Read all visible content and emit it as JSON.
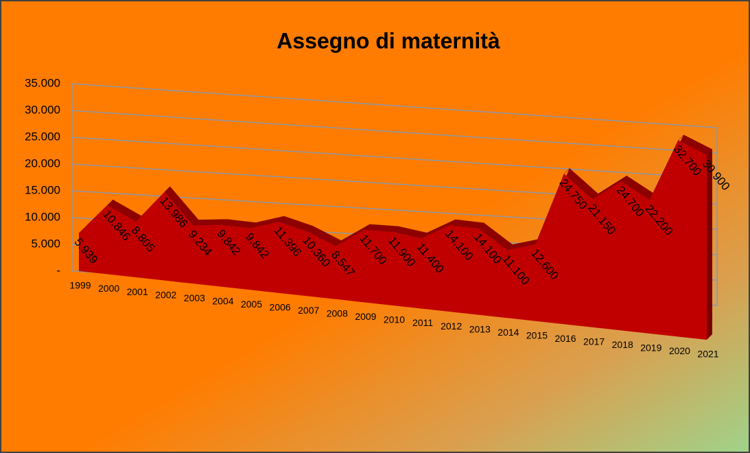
{
  "chart_data": {
    "type": "area3d",
    "title": "Assegno di maternità",
    "categories": [
      "1999",
      "2000",
      "2001",
      "2002",
      "2003",
      "2004",
      "2005",
      "2006",
      "2007",
      "2008",
      "2009",
      "2010",
      "2011",
      "2012",
      "2013",
      "2014",
      "2015",
      "2016",
      "2017",
      "2018",
      "2019",
      "2020",
      "2021"
    ],
    "values": [
      5939,
      10846,
      8805,
      13986,
      9234,
      9842,
      9842,
      11396,
      10360,
      8547,
      11700,
      11900,
      11400,
      14100,
      14100,
      11100,
      12600,
      24750,
      21150,
      24700,
      22200,
      32700,
      30900
    ],
    "value_labels": [
      "5.939",
      "10.846",
      "8.805",
      "13.986",
      "9.234",
      "9.842",
      "9.842",
      "11.396",
      "10.360",
      "8.547",
      "11.700",
      "11.900",
      "11.400",
      "14.100",
      "14.100",
      "11.100",
      "12.600",
      "24.750",
      "21.150",
      "24.700",
      "22.200",
      "32.700",
      "30.900"
    ],
    "color": "#c00000",
    "ylim": [
      0,
      35000
    ],
    "yticks": [
      {
        "value": 0,
        "label": "-"
      },
      {
        "value": 5000,
        "label": "5.000"
      },
      {
        "value": 10000,
        "label": "10.000"
      },
      {
        "value": 15000,
        "label": "15.000"
      },
      {
        "value": 20000,
        "label": "20.000"
      },
      {
        "value": 25000,
        "label": "25.000"
      },
      {
        "value": 30000,
        "label": "30.000"
      },
      {
        "value": 35000,
        "label": "35.000"
      }
    ],
    "grid": true
  }
}
